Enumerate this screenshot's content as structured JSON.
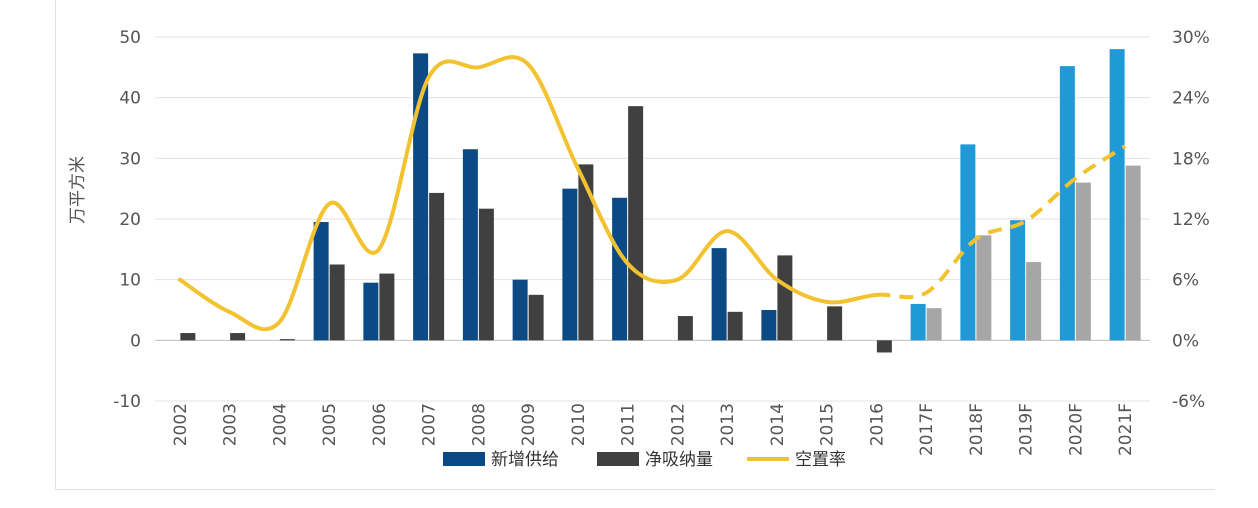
{
  "chart_data": {
    "type": "bar",
    "title": "",
    "xlabel": "",
    "ylabel": "万平方米",
    "ylim": [
      -10,
      50
    ],
    "yticks": [
      "-10",
      "0",
      "10",
      "20",
      "30",
      "40",
      "50"
    ],
    "y2lim": [
      -6,
      30
    ],
    "y2ticks": [
      "-6%",
      "0%",
      "6%",
      "12%",
      "18%",
      "24%",
      "30%"
    ],
    "grid": true,
    "legend_position": "bottom",
    "categories": [
      "2002",
      "2003",
      "2004",
      "2005",
      "2006",
      "2007",
      "2008",
      "2009",
      "2010",
      "2011",
      "2012",
      "2013",
      "2014",
      "2015",
      "2016",
      "2017F",
      "2018F",
      "2019F",
      "2020F",
      "2021F"
    ],
    "forecast_start_index": 15,
    "series": [
      {
        "name": "新增供给",
        "type": "bar",
        "color": "#0b4a84",
        "forecast_color": "#1f9ad6",
        "values": [
          0,
          0,
          0,
          19.5,
          9.5,
          47.3,
          31.5,
          10,
          25,
          23.5,
          0,
          15.2,
          5,
          0,
          0,
          6,
          32.3,
          19.8,
          45.2,
          48
        ]
      },
      {
        "name": "净吸纳量",
        "type": "bar",
        "color": "#404040",
        "forecast_color": "#a6a6a6",
        "values": [
          1.2,
          1.2,
          0.2,
          12.5,
          11,
          24.3,
          21.7,
          7.5,
          29,
          38.6,
          4,
          4.7,
          14,
          5.6,
          -2,
          5.3,
          17.3,
          12.9,
          26,
          28.8
        ]
      },
      {
        "name": "空置率",
        "type": "line",
        "axis": "right",
        "color": "#f2c230",
        "values": [
          6,
          2.8,
          1.8,
          13.5,
          9,
          26,
          27,
          27.3,
          17,
          7.6,
          6,
          10.8,
          6,
          3.8,
          4.5,
          4.7,
          10,
          11.8,
          16,
          19.2
        ]
      }
    ]
  }
}
